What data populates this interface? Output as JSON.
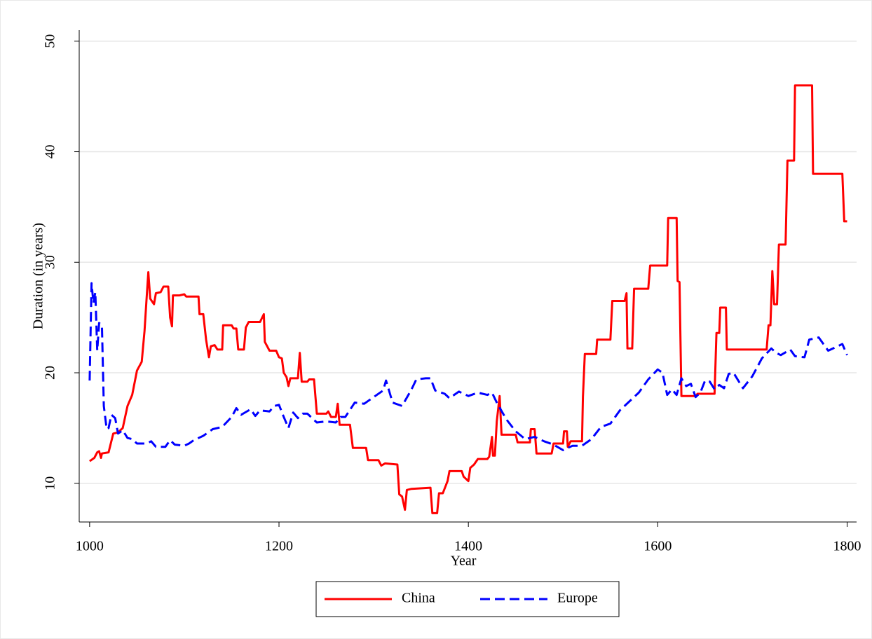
{
  "chart_data": {
    "type": "line",
    "xlabel": "Year",
    "ylabel": "Duration (in years)",
    "xlim": [
      989,
      1810
    ],
    "xticks": [
      1000,
      1200,
      1400,
      1600,
      1800
    ],
    "ylim": [
      6.5,
      51
    ],
    "yticks": [
      10,
      20,
      30,
      40,
      50
    ],
    "grid": true,
    "legend_position": "bottom",
    "series": [
      {
        "name": "China",
        "color": "#ff0000",
        "line_style": "solid",
        "x": [
          1000,
          1005,
          1008,
          1010,
          1012,
          1013,
          1020,
          1025,
          1030,
          1035,
          1040,
          1045,
          1050,
          1055,
          1058,
          1060,
          1062,
          1064,
          1068,
          1070,
          1075,
          1078,
          1083,
          1085,
          1087,
          1088,
          1095,
          1100,
          1102,
          1115,
          1116,
          1120,
          1123,
          1126,
          1128,
          1132,
          1135,
          1140,
          1141,
          1150,
          1152,
          1155,
          1157,
          1163,
          1165,
          1168,
          1180,
          1184,
          1185,
          1190,
          1197,
          1200,
          1203,
          1205,
          1208,
          1210,
          1212,
          1220,
          1222,
          1224,
          1230,
          1232,
          1237,
          1240,
          1250,
          1252,
          1255,
          1260,
          1262,
          1264,
          1275,
          1278,
          1292,
          1294,
          1305,
          1308,
          1312,
          1325,
          1327,
          1330,
          1333,
          1335,
          1340,
          1360,
          1362,
          1367,
          1369,
          1373,
          1378,
          1380,
          1393,
          1395,
          1400,
          1402,
          1406,
          1410,
          1420,
          1422,
          1425,
          1426,
          1428,
          1430,
          1433,
          1435,
          1450,
          1452,
          1465,
          1466,
          1470,
          1472,
          1488,
          1490,
          1500,
          1501,
          1504,
          1505,
          1508,
          1520,
          1521,
          1523,
          1535,
          1536,
          1550,
          1552,
          1565,
          1567,
          1568,
          1573,
          1575,
          1590,
          1592,
          1610,
          1611,
          1620,
          1621,
          1623,
          1625,
          1640,
          1642,
          1660,
          1662,
          1665,
          1666,
          1672,
          1673,
          1715,
          1717,
          1719,
          1721,
          1723,
          1726,
          1728,
          1735,
          1737,
          1744,
          1745,
          1763,
          1764,
          1795,
          1797,
          1800
        ],
        "values": [
          12,
          12.3,
          12.8,
          12.9,
          12.3,
          12.7,
          12.8,
          14.5,
          14.6,
          15,
          17,
          18,
          20.2,
          21,
          23.8,
          26.5,
          29.1,
          26.7,
          26.2,
          27.2,
          27.3,
          27.8,
          27.8,
          25,
          24.2,
          27,
          27,
          27.1,
          26.9,
          26.9,
          25.3,
          25.3,
          23,
          21.4,
          22.4,
          22.5,
          22.1,
          22.1,
          24.3,
          24.3,
          24,
          24,
          22.1,
          22.1,
          24.1,
          24.6,
          24.6,
          25.3,
          22.8,
          22,
          22,
          21.4,
          21.3,
          20,
          19.6,
          18.8,
          19.5,
          19.5,
          21.8,
          19.2,
          19.2,
          19.4,
          19.4,
          16.3,
          16.3,
          16.5,
          16,
          16,
          17.2,
          15.3,
          15.3,
          13.2,
          13.2,
          12.1,
          12.1,
          11.6,
          11.8,
          11.7,
          9,
          8.8,
          7.6,
          9.4,
          9.5,
          9.6,
          7.3,
          7.3,
          9.1,
          9.1,
          10.2,
          11.1,
          11.1,
          10.6,
          10.2,
          11.4,
          11.7,
          12.2,
          12.2,
          12.4,
          14.2,
          12.5,
          12.5,
          15.6,
          17.9,
          14.4,
          14.4,
          13.7,
          13.7,
          14.9,
          14.9,
          12.7,
          12.7,
          13.6,
          13.6,
          14.7,
          14.7,
          13.3,
          13.8,
          13.8,
          17.8,
          21.7,
          21.7,
          23,
          23,
          26.5,
          26.5,
          27.2,
          22.2,
          22.2,
          27.6,
          27.6,
          29.7,
          29.7,
          34,
          34,
          28.3,
          28.2,
          17.9,
          17.9,
          18.1,
          18.1,
          23.6,
          23.6,
          25.9,
          25.9,
          22.1,
          22.1,
          24.3,
          24.3,
          29.2,
          26.2,
          26.2,
          31.6,
          31.6,
          39.2,
          39.2,
          46,
          46,
          38,
          38,
          33.7,
          33.7
        ]
      },
      {
        "name": "Europe",
        "color": "#0000ff",
        "line_style": "dashed",
        "x": [
          1000,
          1002,
          1004,
          1006,
          1008,
          1010,
          1013,
          1015,
          1018,
          1020,
          1023,
          1027,
          1030,
          1035,
          1040,
          1045,
          1050,
          1060,
          1065,
          1070,
          1080,
          1085,
          1090,
          1100,
          1105,
          1110,
          1120,
          1130,
          1140,
          1150,
          1155,
          1160,
          1170,
          1175,
          1180,
          1190,
          1195,
          1200,
          1205,
          1210,
          1215,
          1220,
          1225,
          1230,
          1240,
          1250,
          1260,
          1265,
          1270,
          1280,
          1290,
          1300,
          1310,
          1313,
          1320,
          1330,
          1340,
          1345,
          1355,
          1360,
          1365,
          1375,
          1380,
          1390,
          1400,
          1410,
          1420,
          1425,
          1430,
          1440,
          1450,
          1460,
          1470,
          1480,
          1490,
          1500,
          1510,
          1520,
          1530,
          1540,
          1550,
          1560,
          1570,
          1580,
          1590,
          1600,
          1605,
          1610,
          1615,
          1620,
          1625,
          1630,
          1635,
          1640,
          1645,
          1650,
          1655,
          1660,
          1665,
          1670,
          1675,
          1680,
          1690,
          1700,
          1710,
          1720,
          1725,
          1730,
          1740,
          1745,
          1755,
          1760,
          1770,
          1775,
          1780,
          1790,
          1795,
          1800
        ],
        "values": [
          19.3,
          28.1,
          26.3,
          27.3,
          22,
          24.5,
          24.3,
          17,
          14.9,
          15,
          16.2,
          15.9,
          14.5,
          14.8,
          14.1,
          14,
          13.6,
          13.6,
          13.8,
          13.3,
          13.3,
          13.9,
          13.5,
          13.4,
          13.6,
          13.9,
          14.3,
          14.9,
          15.1,
          16,
          16.8,
          16.2,
          16.7,
          16.1,
          16.6,
          16.5,
          17,
          17.1,
          16,
          15,
          16.4,
          15.9,
          16.3,
          16.3,
          15.5,
          15.6,
          15.5,
          16,
          16,
          17.3,
          17.2,
          17.8,
          18.4,
          19.3,
          17.3,
          17,
          18.5,
          19.4,
          19.5,
          19.5,
          18.4,
          18.1,
          17.7,
          18.3,
          17.9,
          18.2,
          18,
          18.2,
          17.3,
          15.8,
          14.7,
          14,
          14.2,
          13.8,
          13.5,
          13,
          13.4,
          13.4,
          14,
          15.1,
          15.4,
          16.6,
          17.4,
          18.2,
          19.4,
          20.3,
          20,
          18,
          18.5,
          18,
          19.5,
          18.8,
          19,
          17.8,
          18.2,
          19.3,
          19.2,
          18.5,
          18.9,
          18.6,
          19.9,
          20,
          18.6,
          19.7,
          21.3,
          22.2,
          21.8,
          21.6,
          22.1,
          21.5,
          21.4,
          23,
          23.2,
          22.6,
          22,
          22.4,
          22.6,
          21.6
        ]
      }
    ]
  }
}
